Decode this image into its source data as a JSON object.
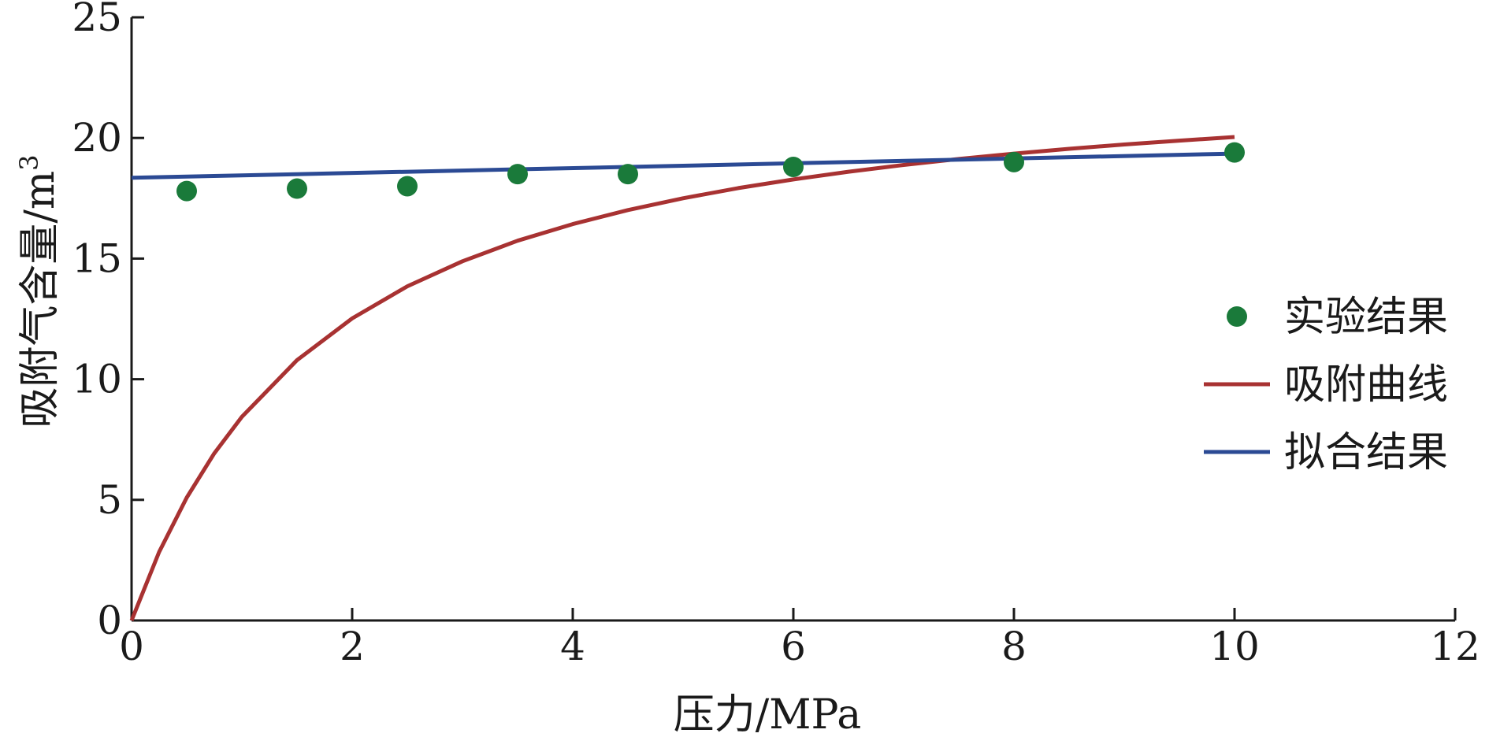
{
  "chart_data": {
    "type": "line",
    "xlabel": "压力/MPa",
    "ylabel": "吸附气含量/m",
    "ylabel_superscript": "3",
    "xlim": [
      0,
      12
    ],
    "ylim": [
      0,
      25
    ],
    "x_ticks": [
      0,
      2,
      4,
      6,
      8,
      10,
      12
    ],
    "y_ticks": [
      0,
      5,
      10,
      15,
      20,
      25
    ],
    "x_tick_labels": [
      "0",
      "2",
      "4",
      "6",
      "8",
      "10",
      "12"
    ],
    "y_tick_labels": [
      "0",
      "5",
      "10",
      "15",
      "20",
      "25"
    ],
    "grid": false,
    "legend_position": "right",
    "series": [
      {
        "name": "实验结果",
        "kind": "scatter",
        "color": "#1a7a3a",
        "x": [
          0.5,
          1.5,
          2.5,
          3.5,
          4.5,
          6,
          8,
          10
        ],
        "y": [
          17.8,
          17.9,
          18.0,
          18.5,
          18.5,
          18.8,
          19.0,
          19.4
        ]
      },
      {
        "name": "吸附曲线",
        "kind": "line",
        "color": "#a83232",
        "x": [
          0,
          0.25,
          0.5,
          0.75,
          1,
          1.5,
          2,
          2.5,
          3,
          3.5,
          4,
          4.5,
          5,
          5.5,
          6,
          6.5,
          7,
          7.5,
          8,
          8.5,
          9,
          9.5,
          10
        ],
        "y": [
          0,
          2.84,
          5.09,
          6.93,
          8.44,
          10.79,
          12.52,
          13.85,
          14.89,
          15.74,
          16.43,
          17.01,
          17.5,
          17.92,
          18.28,
          18.6,
          18.88,
          19.13,
          19.35,
          19.55,
          19.73,
          19.89,
          20.04
        ]
      },
      {
        "name": "拟合结果",
        "kind": "line",
        "color": "#2b4a94",
        "x": [
          0,
          10
        ],
        "y": [
          18.35,
          19.35
        ]
      }
    ]
  }
}
